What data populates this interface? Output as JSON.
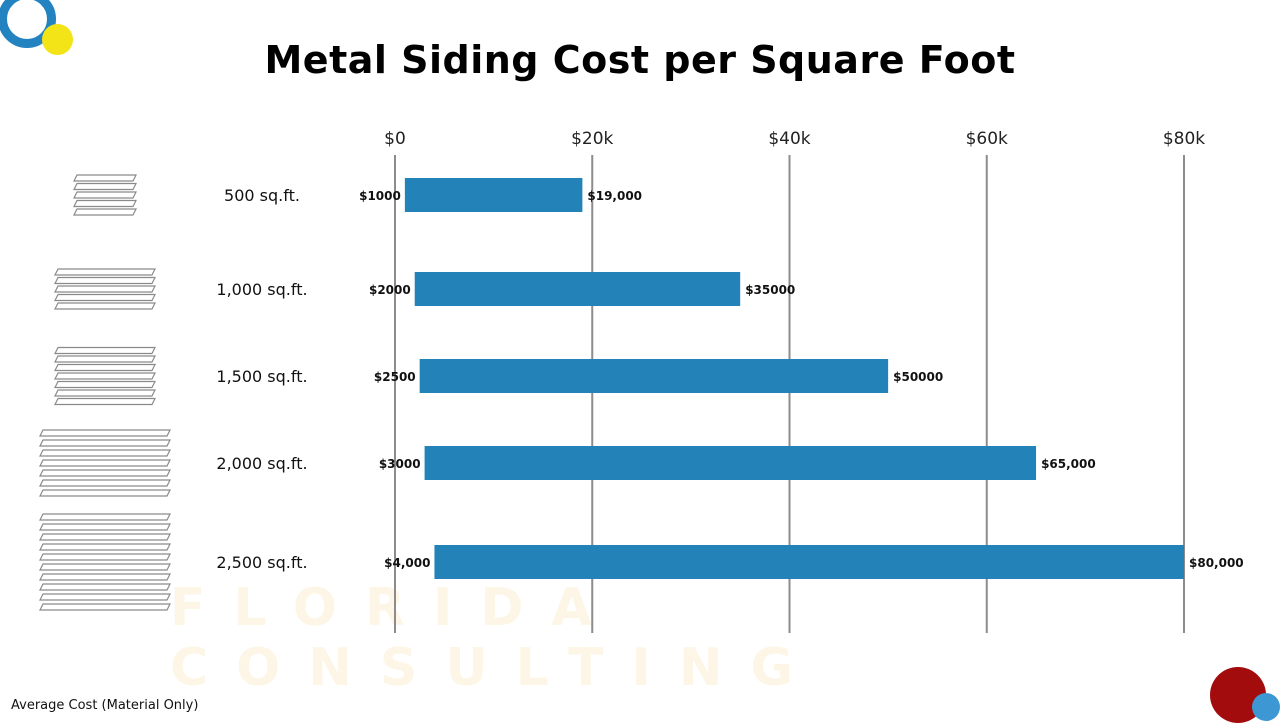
{
  "title": "Metal Siding Cost per Square Foot",
  "footnote": "Average Cost (Material Only)",
  "watermark": "FLORIDA CONSULTING",
  "colors": {
    "bar": "#2383b8",
    "grid": "#8c8c8c",
    "logo_blue": "#2383c1",
    "logo_yellow": "#f2e416",
    "corner_red": "#a30c0c",
    "corner_blue": "#3d97d3"
  },
  "chart_data": {
    "type": "bar",
    "orientation": "horizontal",
    "title": "Metal Siding Cost per Square Foot",
    "categories": [
      "500 sq.ft.",
      "1,000 sq.ft.",
      "1,500 sq.ft.",
      "2,000 sq.ft.",
      "2,500 sq.ft."
    ],
    "icon_slats": [
      5,
      5,
      7,
      7,
      10
    ],
    "low": [
      1000,
      2000,
      2500,
      3000,
      4000
    ],
    "high": [
      19000,
      35000,
      50000,
      65000,
      80000
    ],
    "low_labels": [
      "$1000",
      "$2000",
      "$2500",
      "$3000",
      "$4,000"
    ],
    "high_labels": [
      "$19,000",
      "$35000",
      "$50000",
      "$65,000",
      "$80,000"
    ],
    "xlim": [
      0,
      80000
    ],
    "xticks": [
      0,
      20000,
      40000,
      60000,
      80000
    ],
    "xtick_labels": [
      "$0",
      "$20k",
      "$40k",
      "$60k",
      "$80k"
    ],
    "xaxis_position": "top",
    "grid": true
  }
}
